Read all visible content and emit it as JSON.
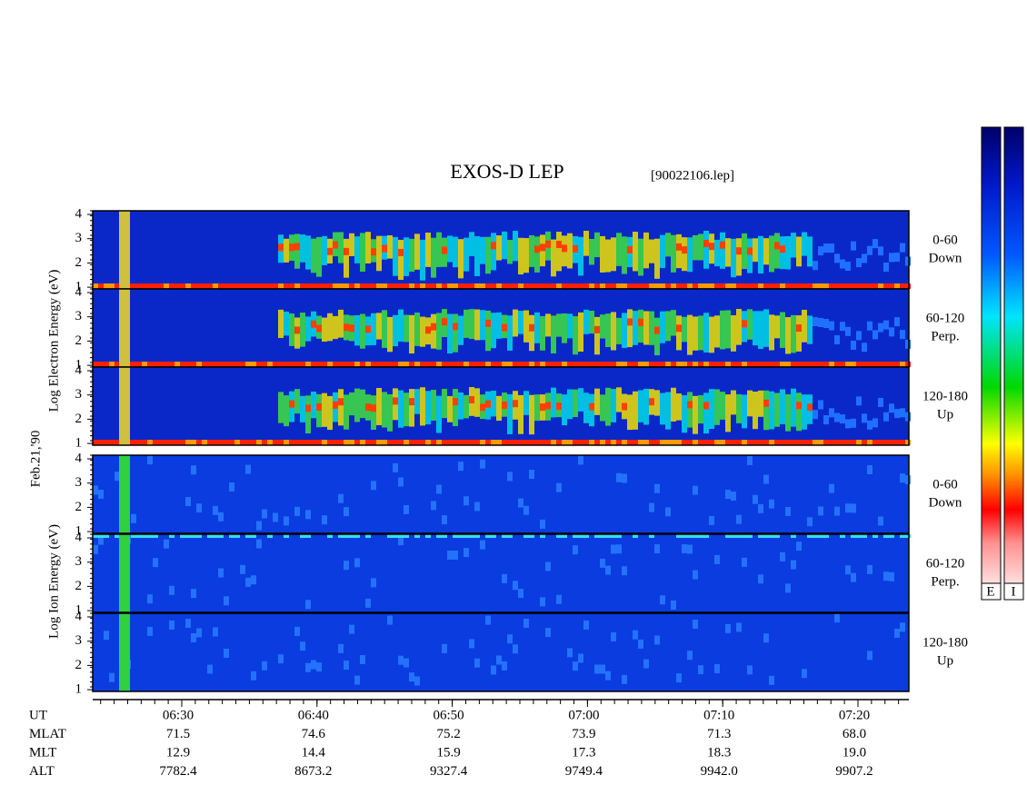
{
  "header": {
    "title": "EXOS-D LEP",
    "file": "[90022106.lep]"
  },
  "date": "Feb.21,'90",
  "electron": {
    "axis_label": "Log  Electron  Energy (eV)",
    "panels": [
      {
        "angle": "0-60",
        "direction": "Down"
      },
      {
        "angle": "60-120",
        "direction": "Perp."
      },
      {
        "angle": "120-180",
        "direction": "Up"
      }
    ]
  },
  "ion": {
    "axis_label": "Log  Ion  Energy (eV)",
    "panels": [
      {
        "angle": "0-60",
        "direction": "Down"
      },
      {
        "angle": "60-120",
        "direction": "Perp."
      },
      {
        "angle": "120-180",
        "direction": "Up"
      }
    ]
  },
  "yticks": [
    1,
    2,
    3,
    4
  ],
  "colorbar_labels": [
    "E",
    "I"
  ],
  "ephemeris": {
    "row_labels": [
      "UT",
      "MLAT",
      "MLT",
      "ALT"
    ],
    "columns": [
      [
        "06:30",
        "71.5",
        "12.9",
        "7782.4"
      ],
      [
        "06:40",
        "74.6",
        "14.4",
        "8673.2"
      ],
      [
        "06:50",
        "75.2",
        "15.9",
        "9327.4"
      ],
      [
        "07:00",
        "73.9",
        "17.3",
        "9749.4"
      ],
      [
        "07:10",
        "71.3",
        "18.3",
        "9942.0"
      ],
      [
        "07:20",
        "68.0",
        "19.0",
        "9907.2"
      ]
    ]
  }
}
